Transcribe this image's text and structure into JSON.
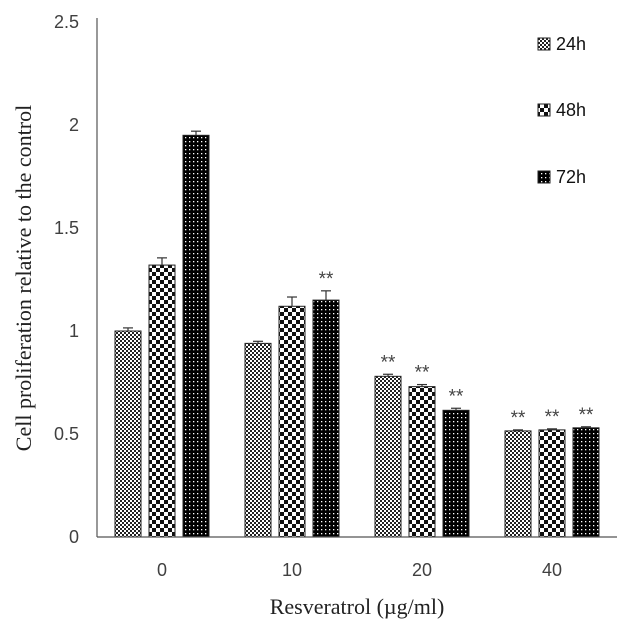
{
  "chart_data": {
    "type": "bar",
    "title": "",
    "xlabel": "Resveratrol (µg/ml)",
    "ylabel": "Cell proliferation relative to the control",
    "ylim": [
      0,
      2.5
    ],
    "yticks": [
      "0",
      "0.5",
      "1",
      "1.5",
      "2",
      "2.5"
    ],
    "categories": [
      "0",
      "10",
      "20",
      "40"
    ],
    "series": [
      {
        "name": "24h",
        "pattern": "fine-check",
        "values": [
          1.0,
          0.94,
          0.78,
          0.515
        ],
        "errors": [
          0.015,
          0.01,
          0.01,
          0.005
        ],
        "annotations": [
          "",
          "",
          "**",
          "**"
        ]
      },
      {
        "name": "48h",
        "pattern": "checker",
        "values": [
          1.32,
          1.12,
          0.73,
          0.52
        ],
        "errors": [
          0.035,
          0.045,
          0.01,
          0.005
        ],
        "annotations": [
          "",
          "",
          "**",
          "**"
        ]
      },
      {
        "name": "72h",
        "pattern": "dots",
        "values": [
          1.95,
          1.15,
          0.615,
          0.53
        ],
        "errors": [
          0.02,
          0.045,
          0.01,
          0.005
        ],
        "annotations": [
          "",
          "**",
          "**",
          "**"
        ]
      }
    ],
    "legend_position": "top-right",
    "grid": false
  }
}
